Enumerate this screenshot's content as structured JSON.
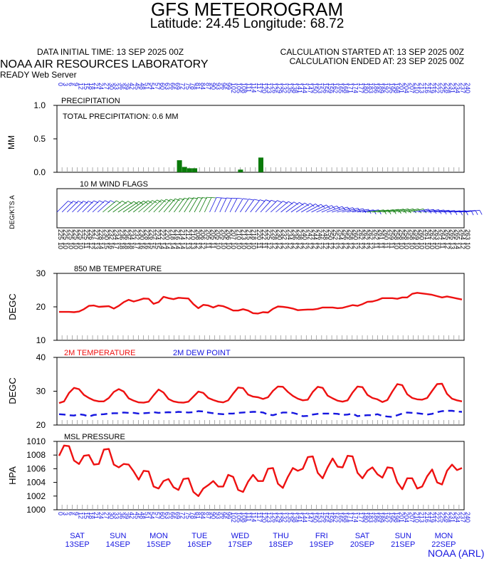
{
  "header": {
    "title": "GFS METEOROGRAM",
    "subtitle": "Latitude: 24.45 Longitude:  68.72",
    "init_time": "DATA INITIAL TIME: 13 SEP 2025 00Z",
    "calc_started": "CALCULATION STARTED AT: 13 SEP 2025 00Z",
    "calc_ended": "CALCULATION ENDED AT: 23 SEP 2025 00Z",
    "lab": "NOAA AIR RESOURCES LABORATORY",
    "server": "READY Web Server"
  },
  "footer": {
    "credit": "NOAA (ARL)"
  },
  "colors": {
    "red": "#ee1111",
    "blue": "#1515e0",
    "green": "#0a7a0a",
    "grid": "#999999"
  },
  "chart_data": [
    {
      "type": "bar",
      "title": "PRECIPITATION",
      "annotation": "TOTAL PRECIPITATION:   0.6 MM",
      "ylabel": "MM",
      "ylim": [
        0,
        1.0
      ],
      "yticks": [
        "0.0",
        "0.5",
        "1.0"
      ],
      "x_hours": [
        72,
        75,
        78,
        81,
        108,
        120
      ],
      "values": [
        0.18,
        0.08,
        0.06,
        0.06,
        0.04,
        0.22
      ]
    },
    {
      "type": "line",
      "title": "10 M  WIND FLAGS",
      "ylabel": "DEG/KTS  A",
      "top_labels": [
        "0",
        "3",
        "6",
        "9",
        "12",
        "15",
        "18",
        "21",
        "24",
        "27",
        "30",
        "33",
        "36",
        "39",
        "42",
        "45",
        "48",
        "51",
        "54",
        "57",
        "60",
        "63",
        "66",
        "69",
        "72",
        "75",
        "78",
        "81",
        "84",
        "87",
        "90",
        "93",
        "96",
        "99",
        "102",
        "105",
        "108",
        "111",
        "114",
        "117",
        "120",
        "123",
        "126",
        "129",
        "132",
        "135",
        "138",
        "141",
        "144",
        "147",
        "150",
        "153",
        "156",
        "159",
        "162",
        "165",
        "168",
        "171",
        "174",
        "177",
        "180",
        "183",
        "186",
        "189",
        "192",
        "195",
        "198",
        "201",
        "204",
        "207",
        "210",
        "213",
        "216",
        "219",
        "222",
        "225",
        "228",
        "231",
        "234",
        "237",
        "240"
      ],
      "directions": [
        225,
        225,
        225,
        225,
        225,
        225,
        226,
        227,
        228,
        230,
        232,
        234,
        236,
        236,
        234,
        232,
        230,
        228,
        226,
        224,
        222,
        220,
        218,
        216,
        214,
        212,
        210,
        208,
        206,
        205,
        205,
        205,
        205,
        206,
        207,
        210,
        213,
        215,
        218,
        220,
        222,
        225,
        228,
        230,
        232,
        234,
        236,
        238,
        240,
        242,
        244,
        246,
        248,
        250,
        252,
        254,
        256,
        258,
        260,
        262,
        262,
        262,
        262,
        261,
        260,
        259,
        258,
        258,
        258,
        258,
        259,
        260,
        261,
        262,
        263,
        264,
        265,
        265,
        265,
        264,
        263
      ],
      "speeds": [
        10,
        10,
        10,
        10,
        10,
        11,
        12,
        13,
        14,
        15,
        16,
        17,
        18,
        18,
        18,
        17,
        16,
        16,
        15,
        15,
        14,
        14,
        14,
        14,
        14,
        13,
        13,
        12,
        12,
        11,
        11,
        10,
        10,
        10,
        10,
        10,
        10,
        10,
        10,
        11,
        11,
        12,
        12,
        12,
        12,
        12,
        12,
        12,
        12,
        12,
        12,
        12,
        12,
        12,
        12,
        12,
        12,
        12,
        12,
        12,
        12,
        12,
        11,
        11,
        11,
        11,
        10,
        10,
        10,
        10,
        10,
        10,
        10,
        10,
        10,
        11,
        12,
        13,
        14,
        12,
        10
      ]
    },
    {
      "type": "line",
      "title": "850 MB  TEMPERATURE",
      "ylabel": "DEGC",
      "ylim": [
        10,
        30
      ],
      "yticks": [
        "10",
        "20",
        "30"
      ],
      "series": [
        {
          "values": [
            18.5,
            18.5,
            18.5,
            18.4,
            18.6,
            19.3,
            20.3,
            20.4,
            20.0,
            20.1,
            20.2,
            19.5,
            20.3,
            21.4,
            22.1,
            21.6,
            22.0,
            22.5,
            22.4,
            20.9,
            21.4,
            23.0,
            22.6,
            22.3,
            22.7,
            22.6,
            22.5,
            20.8,
            19.6,
            20.6,
            20.4,
            19.8,
            20.4,
            20.2,
            19.6,
            18.9,
            18.9,
            19.3,
            18.9,
            18.1,
            18.0,
            18.4,
            18.3,
            19.4,
            20.1,
            20.0,
            19.8,
            19.5,
            19.0,
            19.1,
            19.2,
            19.2,
            19.4,
            19.8,
            19.8,
            19.8,
            19.6,
            19.7,
            20.1,
            20.5,
            20.3,
            20.8,
            21.5,
            21.6,
            22.0,
            22.6,
            22.6,
            22.6,
            22.4,
            22.8,
            22.8,
            23.9,
            24.2,
            24.0,
            23.8,
            23.6,
            23.2,
            22.8,
            23.1,
            22.8,
            22.5,
            22.2
          ]
        }
      ]
    },
    {
      "type": "line",
      "ylabel": "DEGC",
      "ylim": [
        20,
        40
      ],
      "yticks": [
        "20",
        "30",
        "40"
      ],
      "series": [
        {
          "name": "2M TEMPERATURE",
          "values": [
            26.5,
            27.0,
            29.5,
            31.0,
            30.6,
            28.9,
            28.0,
            27.3,
            27.0,
            27.0,
            28.0,
            29.8,
            30.6,
            29.9,
            27.9,
            27.2,
            26.7,
            26.6,
            26.9,
            28.8,
            30.5,
            29.6,
            27.7,
            27.0,
            26.7,
            26.6,
            26.9,
            28.4,
            29.9,
            29.5,
            28.0,
            27.4,
            26.9,
            26.7,
            27.3,
            29.3,
            31.1,
            30.9,
            29.0,
            28.4,
            28.2,
            27.7,
            28.2,
            30.1,
            31.4,
            31.3,
            29.8,
            28.6,
            27.8,
            27.3,
            27.5,
            29.8,
            31.3,
            31.0,
            28.7,
            27.9,
            27.2,
            26.9,
            27.3,
            29.6,
            31.4,
            31.2,
            28.9,
            28.0,
            27.6,
            26.8,
            27.4,
            29.9,
            32.1,
            31.8,
            29.1,
            28.0,
            27.6,
            27.5,
            28.0,
            30.1,
            32.1,
            32.2,
            29.2,
            27.8,
            27.3,
            27.0
          ]
        },
        {
          "name": "2M  DEW POINT",
          "values": [
            23.2,
            23.1,
            22.9,
            22.8,
            23.2,
            23.0,
            22.5,
            23.0,
            23.1,
            23.2,
            23.4,
            23.5,
            23.5,
            23.7,
            23.6,
            23.6,
            23.4,
            23.5,
            23.6,
            23.8,
            23.6,
            23.7,
            23.8,
            23.7,
            23.9,
            23.8,
            23.7,
            23.8,
            24.1,
            24.0,
            23.7,
            23.5,
            23.3,
            23.2,
            23.4,
            23.4,
            23.6,
            23.7,
            23.8,
            23.9,
            23.9,
            23.7,
            23.1,
            22.9,
            23.3,
            23.7,
            23.7,
            23.6,
            23.2,
            22.6,
            22.7,
            23.1,
            23.3,
            23.4,
            23.4,
            23.4,
            23.3,
            23.0,
            23.1,
            23.4,
            22.6,
            22.8,
            22.9,
            22.9,
            23.2,
            22.7,
            22.5,
            22.4,
            22.9,
            23.4,
            23.7,
            23.6,
            23.5,
            23.3,
            23.1,
            23.3,
            23.8,
            24.1,
            24.2,
            24.2,
            24.0,
            23.9
          ]
        }
      ]
    },
    {
      "type": "line",
      "title": "MSL PRESSURE",
      "ylabel": "HPA",
      "ylim": [
        1000,
        1010
      ],
      "yticks": [
        "1000",
        "1002",
        "1004",
        "1006",
        "1008",
        "1010"
      ],
      "series": [
        {
          "values": [
            1007.9,
            1009.4,
            1009.3,
            1007.2,
            1006.7,
            1007.9,
            1008.0,
            1006.6,
            1006.7,
            1008.8,
            1008.9,
            1006.6,
            1006.2,
            1006.7,
            1006.6,
            1005.6,
            1004.4,
            1005.7,
            1005.6,
            1003.4,
            1003.1,
            1004.2,
            1004.5,
            1003.3,
            1002.9,
            1004.5,
            1004.6,
            1002.6,
            1002.0,
            1003.1,
            1003.6,
            1004.2,
            1003.4,
            1003.4,
            1005.1,
            1004.8,
            1002.9,
            1002.6,
            1004.1,
            1005.1,
            1004.2,
            1004.2,
            1006.0,
            1006.1,
            1003.8,
            1003.2,
            1004.8,
            1006.1,
            1005.7,
            1006.0,
            1007.7,
            1007.8,
            1005.4,
            1004.6,
            1006.2,
            1007.5,
            1006.3,
            1006.2,
            1007.9,
            1007.8,
            1005.4,
            1004.6,
            1005.7,
            1006.2,
            1005.2,
            1004.7,
            1006.2,
            1006.1,
            1004.0,
            1003.0,
            1004.6,
            1004.6,
            1003.1,
            1003.4,
            1004.9,
            1005.9,
            1004.0,
            1003.7,
            1005.7,
            1006.6,
            1005.8,
            1006.1
          ]
        }
      ]
    },
    {
      "type": "line",
      "xlabel_hours": [
        "0",
        "3",
        "6",
        "9",
        "12",
        "15",
        "18",
        "21",
        "24",
        "27",
        "30",
        "33",
        "36",
        "39",
        "42",
        "45",
        "48",
        "51",
        "54",
        "57",
        "60",
        "63",
        "66",
        "69",
        "72",
        "75",
        "78",
        "81",
        "84",
        "87",
        "90",
        "93",
        "96",
        "99",
        "102",
        "105",
        "108",
        "111",
        "114",
        "117",
        "120",
        "123",
        "126",
        "129",
        "132",
        "135",
        "138",
        "141",
        "144",
        "147",
        "150",
        "153",
        "156",
        "159",
        "162",
        "165",
        "168",
        "171",
        "174",
        "177",
        "180",
        "183",
        "186",
        "189",
        "192",
        "195",
        "198",
        "201",
        "204",
        "207",
        "210",
        "213",
        "216",
        "219",
        "222",
        "225",
        "228",
        "231",
        "234",
        "237",
        "240"
      ],
      "days": [
        {
          "weekday": "SAT",
          "date": "13SEP"
        },
        {
          "weekday": "SUN",
          "date": "14SEP"
        },
        {
          "weekday": "MON",
          "date": "15SEP"
        },
        {
          "weekday": "TUE",
          "date": "16SEP"
        },
        {
          "weekday": "WED",
          "date": "17SEP"
        },
        {
          "weekday": "THU",
          "date": "18SEP"
        },
        {
          "weekday": "FRI",
          "date": "19SEP"
        },
        {
          "weekday": "SAT",
          "date": "20SEP"
        },
        {
          "weekday": "SUN",
          "date": "21SEP"
        },
        {
          "weekday": "MON",
          "date": "22SEP"
        }
      ]
    }
  ]
}
